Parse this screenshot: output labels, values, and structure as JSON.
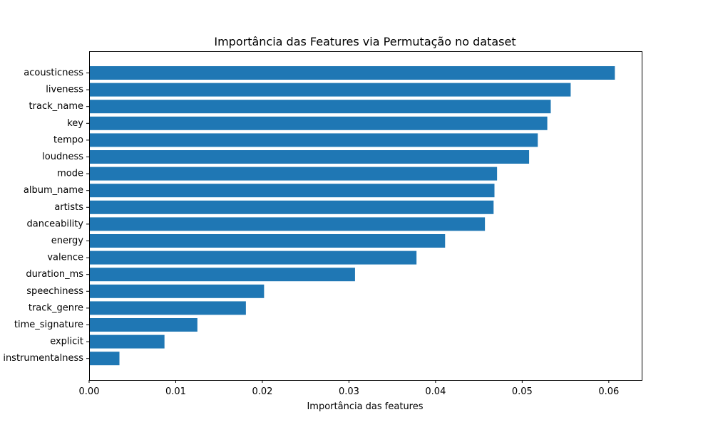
{
  "chart_data": {
    "type": "bar",
    "orientation": "horizontal",
    "title": "Importância das Features via Permutação no dataset",
    "xlabel": "Importância das features",
    "ylabel": "",
    "xlim": [
      0,
      0.0638
    ],
    "xticks": [
      "0.00",
      "0.01",
      "0.02",
      "0.03",
      "0.04",
      "0.05",
      "0.06"
    ],
    "xtick_values": [
      0,
      0.01,
      0.02,
      0.03,
      0.04,
      0.05,
      0.06
    ],
    "grid": false,
    "color": "#1f77b4",
    "categories": [
      "acousticness",
      "liveness",
      "track_name",
      "key",
      "tempo",
      "loudness",
      "mode",
      "album_name",
      "artists",
      "danceability",
      "energy",
      "valence",
      "duration_ms",
      "speechiness",
      "track_genre",
      "time_signature",
      "explicit",
      "instrumentalness"
    ],
    "values": [
      0.0607,
      0.0556,
      0.0533,
      0.0529,
      0.0518,
      0.0508,
      0.0471,
      0.0468,
      0.0467,
      0.0457,
      0.0411,
      0.0378,
      0.0307,
      0.0202,
      0.0181,
      0.0125,
      0.0087,
      0.0035
    ]
  }
}
